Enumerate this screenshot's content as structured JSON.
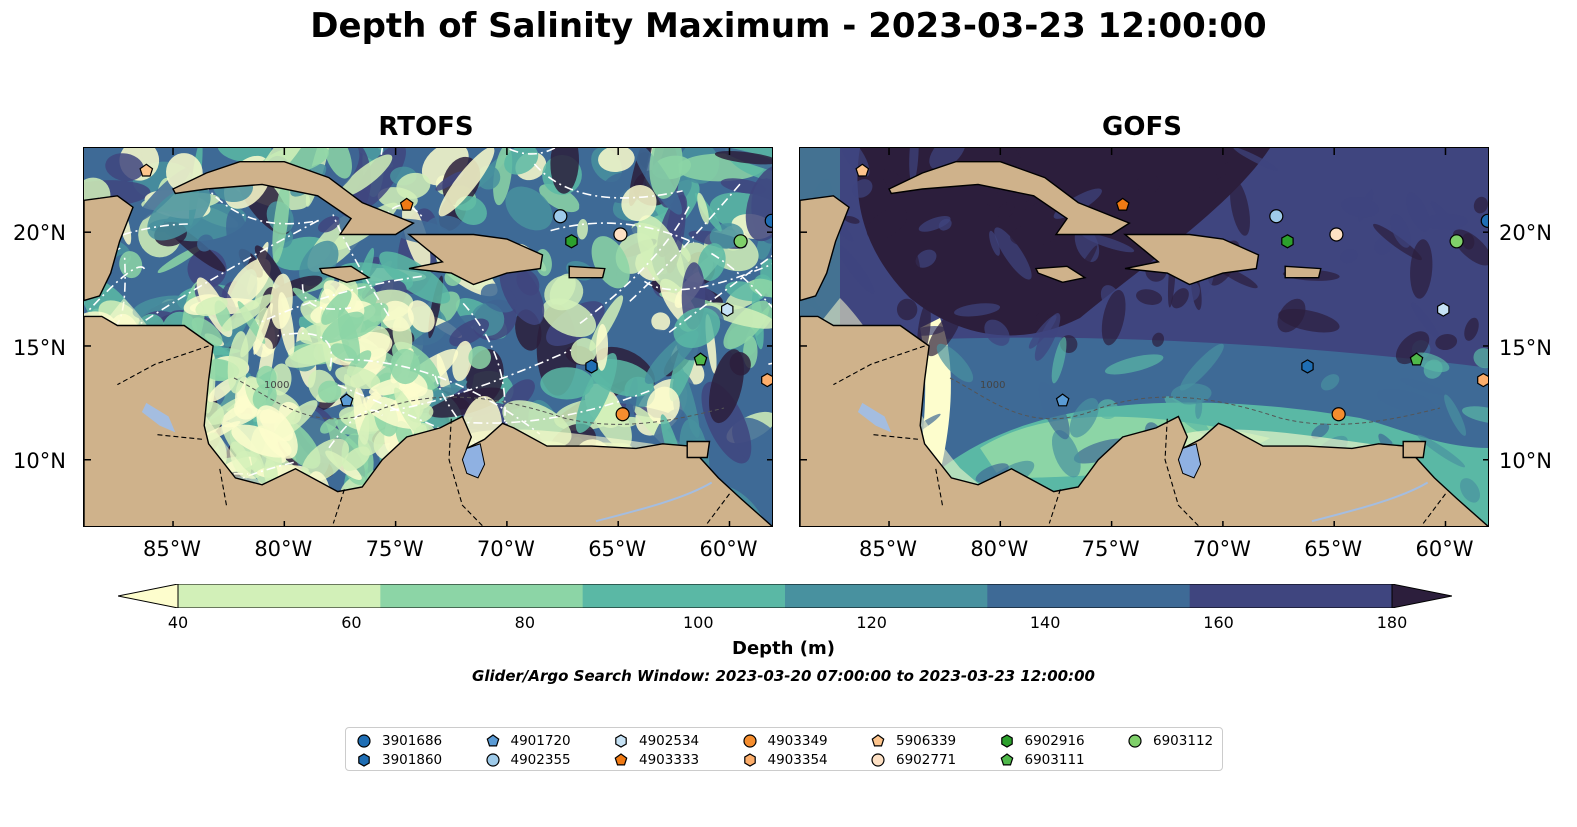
{
  "title": "Depth of Salinity Maximum - 2023-03-23 12:00:00",
  "panels": [
    {
      "title": "RTOFS"
    },
    {
      "title": "GOFS"
    }
  ],
  "lon_ticks": [
    "85°W",
    "80°W",
    "75°W",
    "70°W",
    "65°W",
    "60°W"
  ],
  "lat_ticks": [
    "20°N",
    "15°N",
    "10°N"
  ],
  "contour_label": "1000",
  "colorbar": {
    "ticks": [
      "40",
      "60",
      "80",
      "100",
      "120",
      "140",
      "160",
      "180"
    ],
    "label": "Depth (m)",
    "colors": [
      "#fdfdcd",
      "#d2f0b8",
      "#8cd5a6",
      "#5ab8a5",
      "#48919f",
      "#3e6a96",
      "#3f457f",
      "#2c1e3c"
    ]
  },
  "search_window": "Glider/Argo Search Window: 2023-03-20 07:00:00 to 2023-03-23 12:00:00",
  "colors": {
    "land": "#cfb28b",
    "lake": "#8fb1e2",
    "river": "#a4bde0"
  },
  "floats": [
    {
      "id": "3901686",
      "marker": "circle",
      "color": "#1f6eb4"
    },
    {
      "id": "3901860",
      "marker": "hexagon",
      "color": "#1f6eb4"
    },
    {
      "id": "4901720",
      "marker": "pentagon",
      "color": "#5a9bd5"
    },
    {
      "id": "4902355",
      "marker": "circle",
      "color": "#9ecae9"
    },
    {
      "id": "4902534",
      "marker": "hexagon",
      "color": "#c6e2f5"
    },
    {
      "id": "4903333",
      "marker": "pentagon",
      "color": "#f07a14"
    },
    {
      "id": "4903349",
      "marker": "circle",
      "color": "#f58d2e"
    },
    {
      "id": "4903354",
      "marker": "hexagon",
      "color": "#fdae6b"
    },
    {
      "id": "5906339",
      "marker": "pentagon",
      "color": "#fdc48c"
    },
    {
      "id": "6902771",
      "marker": "circle",
      "color": "#fde0c4"
    },
    {
      "id": "6902916",
      "marker": "hexagon",
      "color": "#2ca02c"
    },
    {
      "id": "6903111",
      "marker": "pentagon",
      "color": "#4fb84a"
    },
    {
      "id": "6903112",
      "marker": "circle",
      "color": "#7fd06a"
    }
  ],
  "float_positions": [
    {
      "id": "5906339",
      "lon": -86.2,
      "lat": 22.7
    },
    {
      "id": "4903333",
      "lon": -74.5,
      "lat": 21.2
    },
    {
      "id": "4902355",
      "lon": -67.6,
      "lat": 20.7
    },
    {
      "id": "3901686",
      "lon": -58.1,
      "lat": 20.5
    },
    {
      "id": "6902916",
      "lon": -67.1,
      "lat": 19.6
    },
    {
      "id": "6902771",
      "lon": -64.9,
      "lat": 19.9
    },
    {
      "id": "6903112",
      "lon": -59.5,
      "lat": 19.6
    },
    {
      "id": "4902534",
      "lon": -60.1,
      "lat": 16.6
    },
    {
      "id": "6903111",
      "lon": -61.3,
      "lat": 14.4
    },
    {
      "id": "3901860",
      "lon": -66.2,
      "lat": 14.1
    },
    {
      "id": "4903354",
      "lon": -58.3,
      "lat": 13.5
    },
    {
      "id": "4901720",
      "lon": -77.2,
      "lat": 12.6
    },
    {
      "id": "4903349",
      "lon": -64.8,
      "lat": 12.0
    }
  ]
}
